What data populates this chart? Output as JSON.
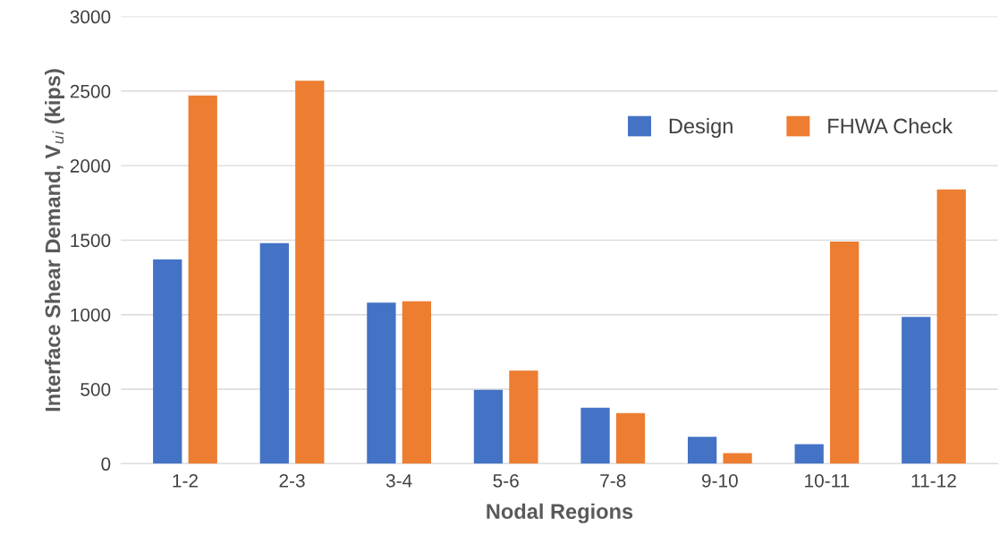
{
  "chart_data": {
    "type": "bar",
    "xlabel": "Nodal Regions",
    "ylabel": "Interface Shear Demand, V$_{ui}$ (kips)",
    "categories": [
      "1-2",
      "2-3",
      "3-4",
      "5-6",
      "7-8",
      "9-10",
      "10-11",
      "11-12"
    ],
    "series": [
      {
        "name": "Design",
        "color": "#4472c4",
        "values": [
          1370,
          1480,
          1080,
          495,
          375,
          180,
          130,
          985
        ]
      },
      {
        "name": "FHWA Check",
        "color": "#ed7d31",
        "values": [
          2470,
          2570,
          1090,
          625,
          340,
          70,
          1490,
          1840
        ]
      }
    ],
    "ylim": [
      0,
      3000
    ],
    "yticks": [
      0,
      500,
      1000,
      1500,
      2000,
      2500,
      3000
    ],
    "grid": "y",
    "legend": "top right"
  }
}
